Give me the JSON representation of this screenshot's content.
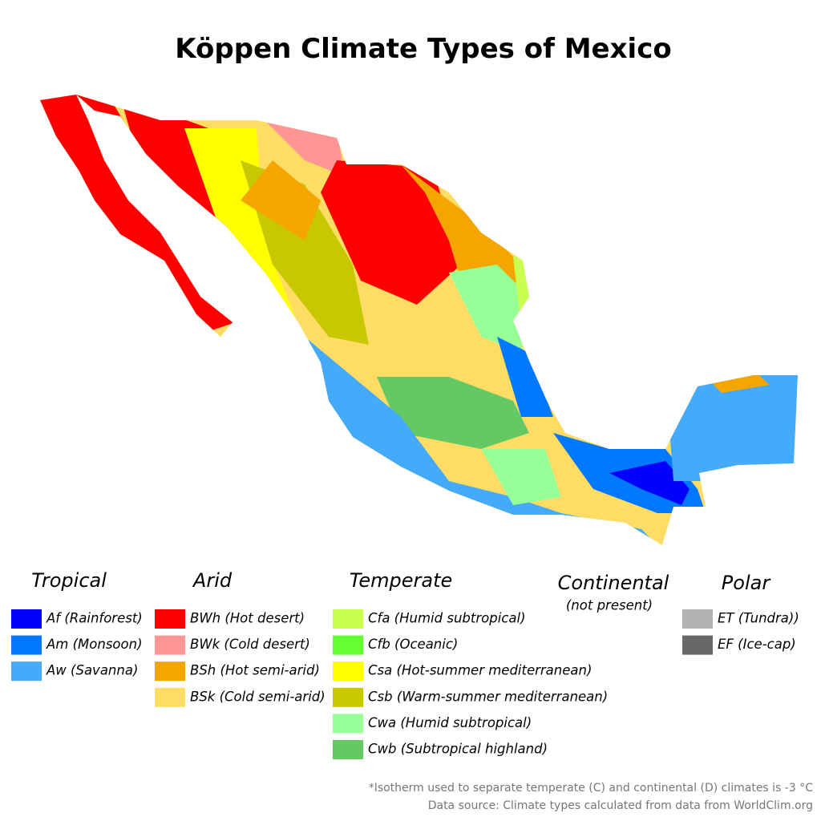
{
  "title": "Köppen Climate Types of Mexico",
  "legend": [
    {
      "heading": "Tropical",
      "items": [
        {
          "label": "Af (Rainforest)",
          "color": "#0000fe"
        },
        {
          "label": "Am (Monsoon)",
          "color": "#0078ff"
        },
        {
          "label": "Aw (Savanna)",
          "color": "#46aafa"
        }
      ]
    },
    {
      "heading": "Arid",
      "items": [
        {
          "label": "BWh (Hot desert)",
          "color": "#ff0000"
        },
        {
          "label": "BWk (Cold desert)",
          "color": "#ff9696"
        },
        {
          "label": "BSh (Hot semi-arid)",
          "color": "#f5a500"
        },
        {
          "label": "BSk (Cold semi-arid)",
          "color": "#ffdc64"
        }
      ]
    },
    {
      "heading": "Temperate",
      "items": [
        {
          "label": "Cfa (Humid subtropical)",
          "color": "#c8ff50"
        },
        {
          "label": "Cfb (Oceanic)",
          "color": "#64ff32"
        },
        {
          "label": "Csa (Hot-summer mediterranean)",
          "color": "#ffff00"
        },
        {
          "label": "Csb (Warm-summer mediterranean)",
          "color": "#c8c800"
        },
        {
          "label": "Cwa (Humid subtropical)",
          "color": "#96ff96"
        },
        {
          "label": "Cwb (Subtropical highland)",
          "color": "#64c864"
        }
      ]
    },
    {
      "heading": "Continental",
      "note": "(not present)"
    },
    {
      "heading": "Polar",
      "items": [
        {
          "label": "ET (Tundra))",
          "color": "#b2b2b2"
        },
        {
          "label": "EF (Ice-cap)",
          "color": "#686868"
        }
      ]
    }
  ],
  "footnotes": [
    "*Isotherm used to separate temperate (C) and continental (D) climates is -3 °C",
    "Data source: Climate types calculated from data from WorldClim.org"
  ]
}
